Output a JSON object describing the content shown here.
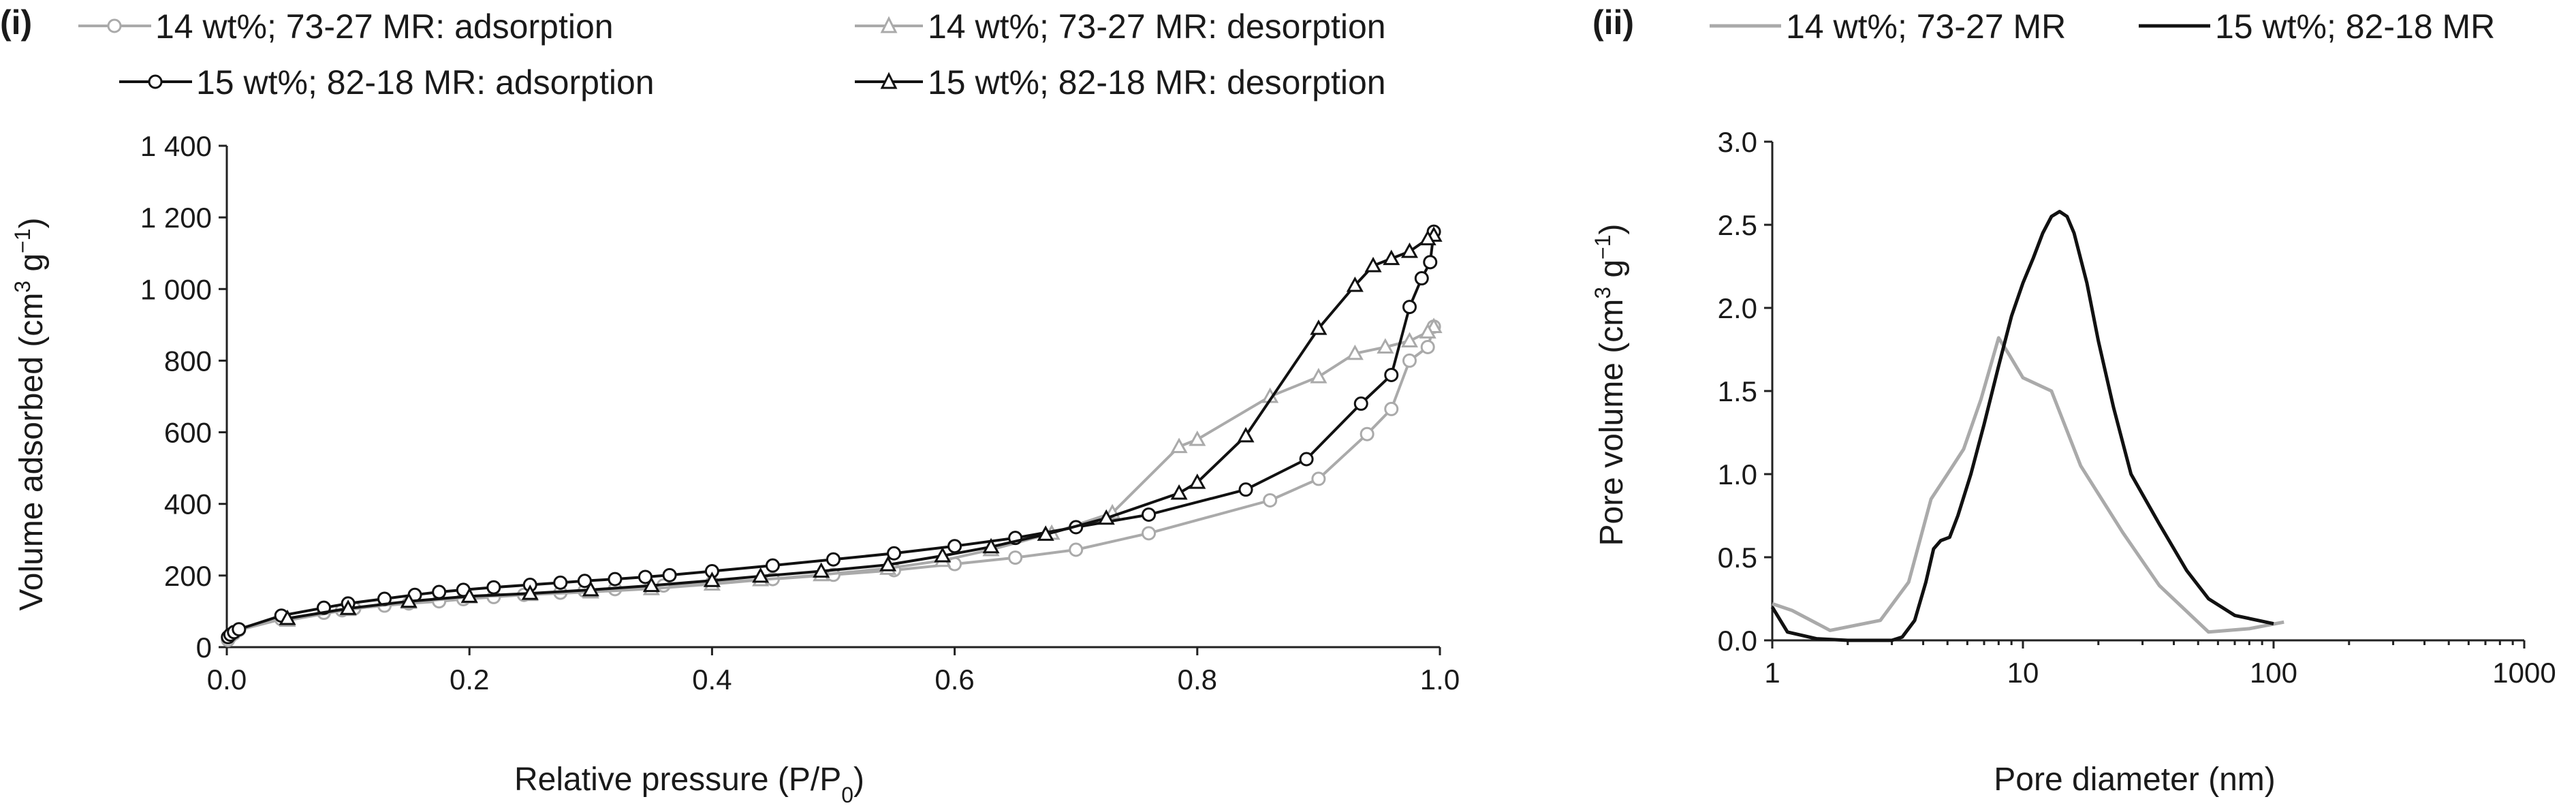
{
  "colors": {
    "gray": "#aaaaaa",
    "black": "#111111",
    "axis": "#222222"
  },
  "chart_data": [
    {
      "type": "line",
      "panel_label": "(i)",
      "title": "",
      "xlabel": {
        "main": "Relative pressure (P/P",
        "sub": "0",
        "end": ")"
      },
      "ylabel": {
        "main": "Volume adsorbed (cm",
        "sup1": "3",
        "mid": " g",
        "sup2": "−1",
        "end": ")"
      },
      "xlim": [
        0.0,
        1.0
      ],
      "ylim": [
        0,
        1400
      ],
      "xticks": [
        0.0,
        0.2,
        0.4,
        0.6,
        0.8,
        1.0
      ],
      "xtick_labels": [
        "0.0",
        "0.2",
        "0.4",
        "0.6",
        "0.8",
        "1.0"
      ],
      "yticks": [
        0,
        200,
        400,
        600,
        800,
        1000,
        1200,
        1400
      ],
      "ytick_labels": [
        "0",
        "200",
        "400",
        "600",
        "800",
        "1 000",
        "1 200",
        "1 400"
      ],
      "series": [
        {
          "name": "14 wt%; 73-27 MR: adsorption",
          "color": "#aaaaaa",
          "marker": "circle",
          "x": [
            0.001,
            0.003,
            0.006,
            0.01,
            0.045,
            0.08,
            0.095,
            0.105,
            0.13,
            0.15,
            0.175,
            0.195,
            0.22,
            0.245,
            0.275,
            0.295,
            0.32,
            0.36,
            0.4,
            0.45,
            0.5,
            0.55,
            0.6,
            0.65,
            0.7,
            0.76,
            0.86,
            0.9,
            0.94,
            0.96,
            0.975,
            0.99,
            0.995
          ],
          "y": [
            20,
            30,
            38,
            48,
            78,
            96,
            103,
            108,
            116,
            122,
            128,
            134,
            140,
            146,
            152,
            157,
            162,
            172,
            180,
            190,
            202,
            215,
            232,
            250,
            272,
            318,
            410,
            470,
            595,
            665,
            800,
            838,
            895
          ]
        },
        {
          "name": "14 wt%; 73-27 MR: desorption",
          "color": "#aaaaaa",
          "marker": "triangle",
          "x": [
            0.995,
            0.99,
            0.975,
            0.955,
            0.93,
            0.9,
            0.86,
            0.8,
            0.785,
            0.73,
            0.68,
            0.63,
            0.59,
            0.545,
            0.49,
            0.44,
            0.4,
            0.35,
            0.3,
            0.25,
            0.2,
            0.15,
            0.1,
            0.05
          ],
          "y": [
            895,
            880,
            855,
            838,
            820,
            755,
            700,
            580,
            560,
            375,
            318,
            272,
            242,
            220,
            202,
            188,
            176,
            163,
            154,
            147,
            140,
            125,
            105,
            75
          ]
        },
        {
          "name": "15 wt%; 82-18 MR: adsorption",
          "color": "#111111",
          "marker": "circle",
          "x": [
            0.001,
            0.003,
            0.006,
            0.01,
            0.045,
            0.08,
            0.1,
            0.13,
            0.155,
            0.175,
            0.195,
            0.22,
            0.25,
            0.275,
            0.295,
            0.32,
            0.345,
            0.365,
            0.4,
            0.45,
            0.5,
            0.55,
            0.6,
            0.65,
            0.7,
            0.76,
            0.84,
            0.89,
            0.935,
            0.96,
            0.975,
            0.985,
            0.992,
            0.995
          ],
          "y": [
            28,
            35,
            42,
            50,
            88,
            110,
            122,
            135,
            146,
            154,
            160,
            167,
            174,
            180,
            185,
            190,
            196,
            201,
            212,
            228,
            245,
            262,
            282,
            305,
            335,
            370,
            440,
            525,
            680,
            760,
            950,
            1030,
            1075,
            1160
          ]
        },
        {
          "name": "15 wt%; 82-18 MR: desorption",
          "color": "#111111",
          "marker": "triangle",
          "x": [
            0.995,
            0.99,
            0.975,
            0.96,
            0.945,
            0.93,
            0.9,
            0.84,
            0.8,
            0.785,
            0.725,
            0.675,
            0.63,
            0.59,
            0.545,
            0.49,
            0.44,
            0.4,
            0.35,
            0.3,
            0.25,
            0.2,
            0.15,
            0.1,
            0.05
          ],
          "y": [
            1150,
            1140,
            1105,
            1085,
            1065,
            1010,
            890,
            590,
            460,
            430,
            360,
            315,
            280,
            255,
            230,
            212,
            198,
            186,
            172,
            160,
            150,
            142,
            128,
            108,
            80
          ]
        }
      ]
    },
    {
      "type": "line",
      "panel_label": "(ii)",
      "title": "",
      "xlabel": {
        "main": "Pore diameter (nm)"
      },
      "ylabel": {
        "main": "Pore volume (cm",
        "sup1": "3",
        "mid": " g",
        "sup2": "−1",
        "end": ")"
      },
      "xscale": "log",
      "xlim": [
        1,
        1000
      ],
      "ylim": [
        0.0,
        3.0
      ],
      "xticks": [
        1,
        10,
        100,
        1000
      ],
      "xtick_labels": [
        "1",
        "10",
        "100",
        "1000"
      ],
      "yticks": [
        0.0,
        0.5,
        1.0,
        1.5,
        2.0,
        2.5,
        3.0
      ],
      "ytick_labels": [
        "0.0",
        "0.5",
        "1.0",
        "1.5",
        "2.0",
        "2.5",
        "3.0"
      ],
      "series": [
        {
          "name": "14 wt%; 73-27 MR",
          "color": "#aaaaaa",
          "x": [
            1.0,
            1.2,
            1.7,
            2.7,
            3.5,
            4.3,
            5.0,
            5.8,
            6.8,
            8.0,
            8.8,
            10,
            13,
            17,
            25,
            35,
            55,
            80,
            110
          ],
          "y": [
            0.22,
            0.18,
            0.06,
            0.12,
            0.35,
            0.85,
            1.0,
            1.15,
            1.45,
            1.82,
            1.72,
            1.58,
            1.5,
            1.05,
            0.65,
            0.33,
            0.05,
            0.07,
            0.11
          ]
        },
        {
          "name": "15 wt%; 82-18 MR",
          "color": "#111111",
          "x": [
            1.0,
            1.15,
            1.5,
            2.0,
            2.5,
            3.0,
            3.3,
            3.7,
            4.1,
            4.4,
            4.7,
            5.1,
            5.5,
            6.2,
            7.0,
            8.0,
            9.0,
            10,
            11,
            12,
            13,
            14,
            15,
            16,
            18,
            20,
            23,
            27,
            35,
            45,
            55,
            70,
            100
          ],
          "y": [
            0.2,
            0.05,
            0.01,
            0.0,
            0.0,
            0.0,
            0.02,
            0.12,
            0.35,
            0.55,
            0.6,
            0.62,
            0.75,
            1.0,
            1.3,
            1.65,
            1.95,
            2.15,
            2.3,
            2.45,
            2.55,
            2.58,
            2.55,
            2.45,
            2.15,
            1.8,
            1.4,
            1.0,
            0.7,
            0.42,
            0.25,
            0.15,
            0.1
          ]
        }
      ]
    }
  ]
}
